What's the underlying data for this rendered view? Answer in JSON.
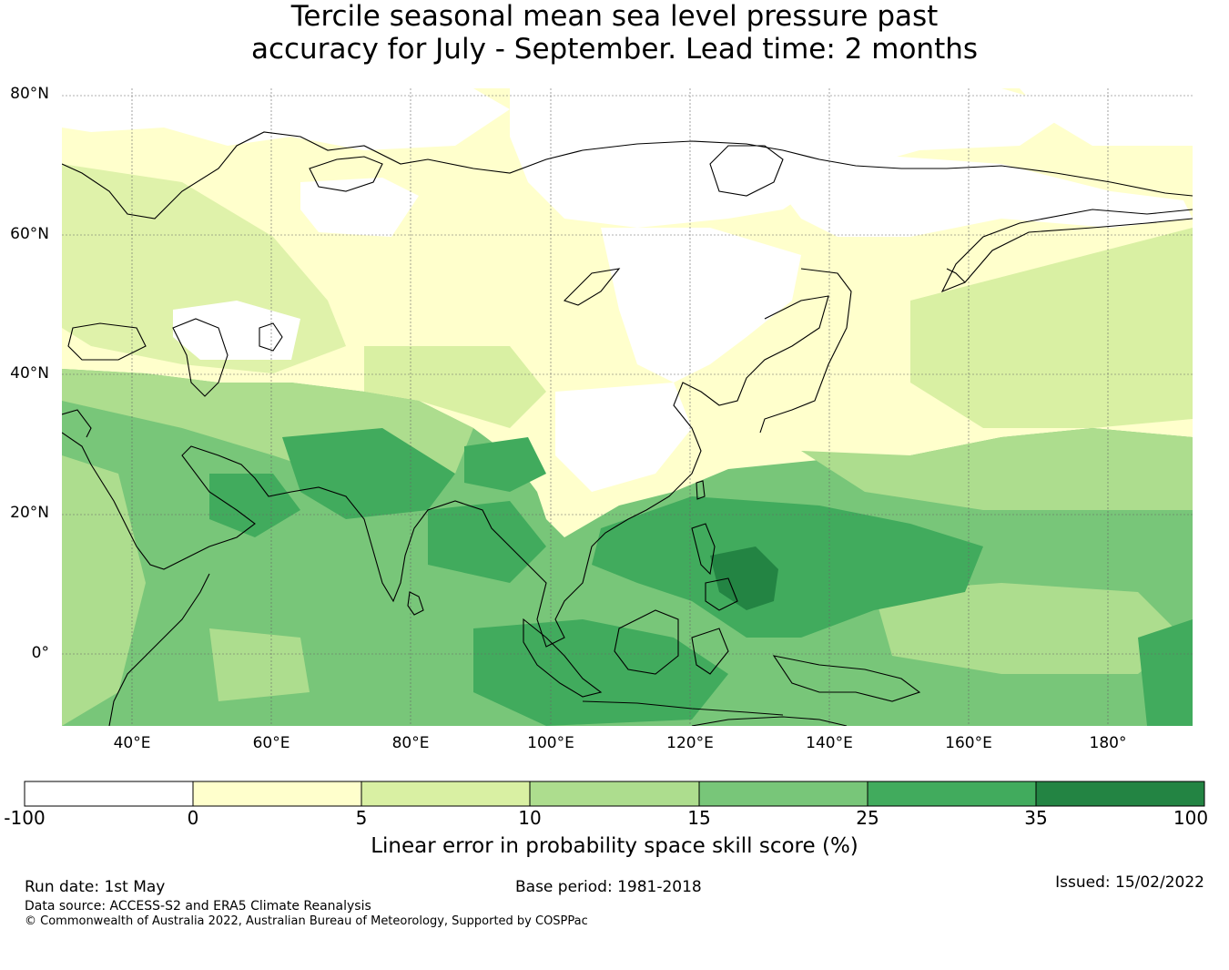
{
  "title_line1": "Tercile seasonal mean sea level pressure past",
  "title_line2": "accuracy for July - September. Lead time: 2 months",
  "map": {
    "lat_ticks": [
      "80°N",
      "60°N",
      "40°N",
      "20°N",
      "0°"
    ],
    "lon_ticks": [
      "40°E",
      "60°E",
      "80°E",
      "100°E",
      "120°E",
      "140°E",
      "160°E",
      "180°"
    ],
    "lat_range": [
      -10,
      80
    ],
    "lon_range": [
      30,
      192.5
    ],
    "grid": true,
    "projection": "equirectangular"
  },
  "colorbar": {
    "label": "Linear error in probability space skill score (%)",
    "tick_labels": [
      "-100",
      "0",
      "5",
      "10",
      "15",
      "25",
      "35",
      "100"
    ],
    "colors": [
      "#ffffff",
      "#ffffcc",
      "#d9f0a3",
      "#addd8e",
      "#78c679",
      "#41ab5d",
      "#238443"
    ]
  },
  "footer": {
    "run_date": "Run date: 1st May",
    "base_period": "Base period: 1981-2018",
    "issued": "Issued: 15/02/2022",
    "data_source": "Data source: ACCESS-S2 and ERA5 Climate Reanalysis",
    "copyright": "© Commonwealth of Australia 2022, Australian Bureau of Meteorology, Supported by COSPPac"
  }
}
